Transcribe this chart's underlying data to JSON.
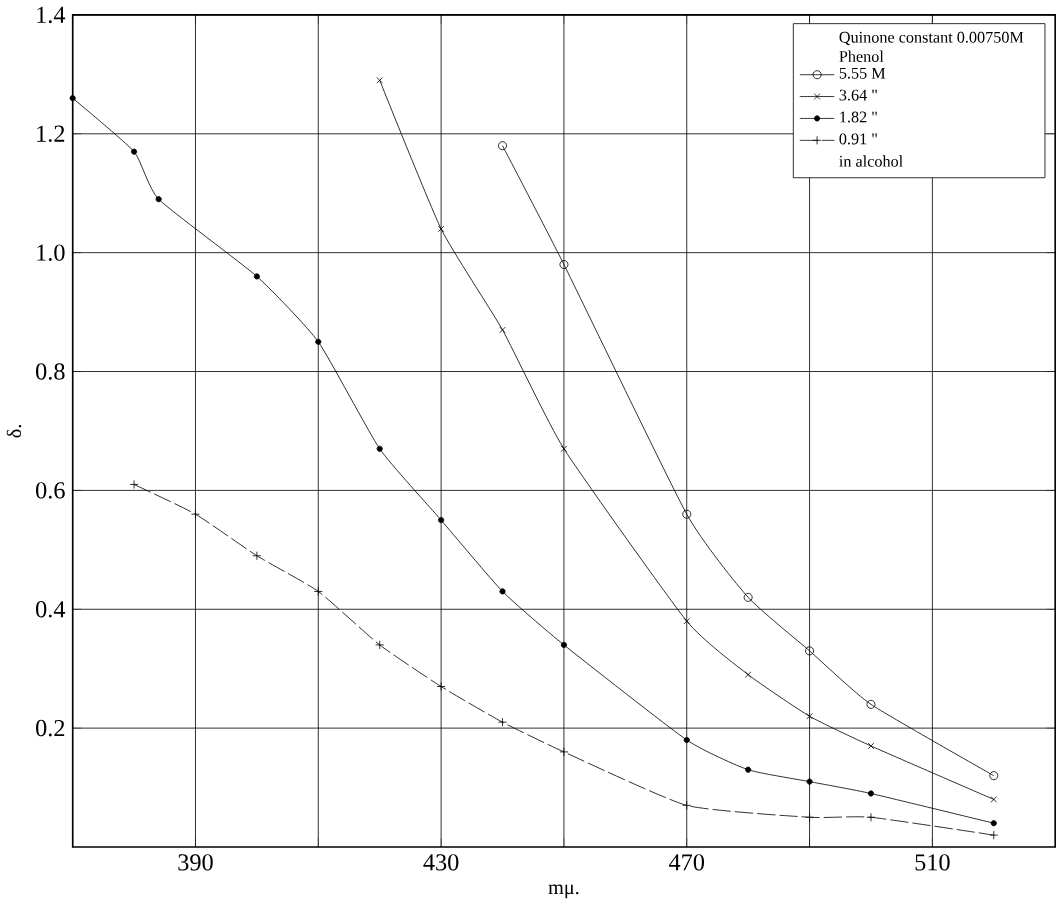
{
  "chart_data": {
    "type": "line",
    "xlabel": "mμ.",
    "ylabel": "δ.",
    "legend_title": "Quinone constant 0.00750M Phenol",
    "annotations": [
      "in alcohol"
    ],
    "xlim": [
      370,
      530
    ],
    "ylim": [
      0,
      1.4
    ],
    "xticks": [
      {
        "value": 370,
        "label": null
      },
      390,
      {
        "value": 410,
        "label": null
      },
      430,
      {
        "value": 450,
        "label": null
      },
      470,
      {
        "value": 490,
        "label": null
      },
      510
    ],
    "yticks": [
      0.2,
      0.4,
      0.6,
      0.8,
      {
        "value": 1.0,
        "label": "1.0"
      },
      1.2,
      1.4
    ],
    "grid": true,
    "legend": "top right",
    "series": [
      {
        "name": "5.55 M",
        "color": "#000000",
        "marker": "circle",
        "line_style": "solid",
        "x": [
          440,
          450,
          470,
          480,
          490,
          500,
          520
        ],
        "values": [
          1.18,
          0.98,
          0.56,
          0.42,
          0.33,
          0.24,
          0.12
        ]
      },
      {
        "name": "3.64 \"",
        "color": "#000000",
        "marker": "cross",
        "line_style": "solid",
        "x": [
          420,
          430,
          440,
          450,
          470,
          480,
          490,
          500,
          520
        ],
        "values": [
          1.29,
          1.04,
          0.87,
          0.67,
          0.38,
          0.29,
          0.22,
          0.17,
          0.08
        ]
      },
      {
        "name": "1.82 \"",
        "color": "#000000",
        "marker": "dot",
        "line_style": "solid",
        "x": [
          370,
          380,
          384,
          400,
          410,
          420,
          430,
          440,
          450,
          470,
          480,
          490,
          500,
          520
        ],
        "values": [
          1.26,
          1.17,
          1.09,
          0.96,
          0.85,
          0.67,
          0.55,
          0.43,
          0.34,
          0.18,
          0.13,
          0.11,
          0.09,
          0.04
        ]
      },
      {
        "name": "0.91 \"",
        "color": "#000000",
        "marker": "plus",
        "line_style": "dashed",
        "x": [
          380,
          390,
          400,
          410,
          420,
          430,
          440,
          450,
          470,
          490,
          500,
          520
        ],
        "values": [
          0.61,
          0.56,
          0.49,
          0.43,
          0.34,
          0.27,
          0.21,
          0.16,
          0.07,
          0.05,
          0.05,
          0.02
        ]
      }
    ]
  }
}
